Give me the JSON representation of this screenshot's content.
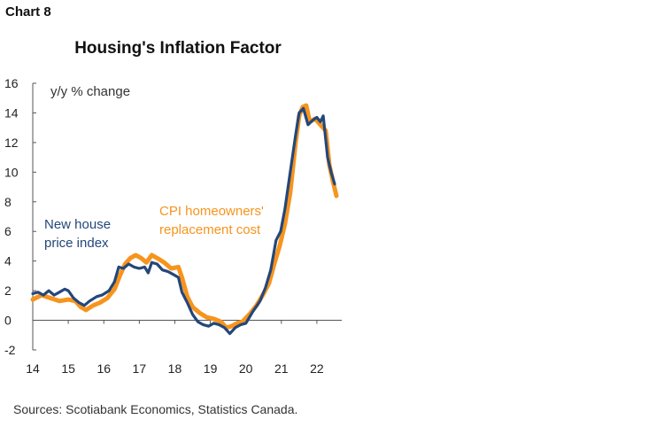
{
  "chart_label": "Chart 8",
  "source": "Sources: Scotiabank Economics, Statistics Canada.",
  "colors": {
    "new_house": "#24477a",
    "cpi": "#f7941d",
    "axis": "#555555",
    "text": "#222222"
  },
  "chart_data": {
    "type": "line",
    "title": "Housing's Inflation Factor",
    "ylabel": "y/y % change",
    "xlabel": "",
    "ylim": [
      -2,
      16
    ],
    "xlim": [
      2014,
      2022.7
    ],
    "yticks": [
      -2,
      0,
      2,
      4,
      6,
      8,
      10,
      12,
      14,
      16
    ],
    "xticks": [
      {
        "value": 2014,
        "label": "14"
      },
      {
        "value": 2015,
        "label": "15"
      },
      {
        "value": 2016,
        "label": "16"
      },
      {
        "value": 2017,
        "label": "17"
      },
      {
        "value": 2018,
        "label": "18"
      },
      {
        "value": 2019,
        "label": "19"
      },
      {
        "value": 2020,
        "label": "20"
      },
      {
        "value": 2021,
        "label": "21"
      },
      {
        "value": 2022,
        "label": "22"
      }
    ],
    "grid": false,
    "series": [
      {
        "name": "CPI  homeowners' replacement cost",
        "color": "#f7941d",
        "label_lines": [
          "CPI  homeowners'",
          "replacement cost"
        ],
        "points": [
          [
            2014.0,
            1.4
          ],
          [
            2014.25,
            1.7
          ],
          [
            2014.5,
            1.5
          ],
          [
            2014.75,
            1.3
          ],
          [
            2015.0,
            1.4
          ],
          [
            2015.2,
            1.3
          ],
          [
            2015.35,
            0.9
          ],
          [
            2015.5,
            0.7
          ],
          [
            2015.7,
            1.0
          ],
          [
            2015.9,
            1.2
          ],
          [
            2016.1,
            1.5
          ],
          [
            2016.3,
            2.1
          ],
          [
            2016.45,
            3.0
          ],
          [
            2016.6,
            3.8
          ],
          [
            2016.75,
            4.2
          ],
          [
            2016.9,
            4.4
          ],
          [
            2017.05,
            4.2
          ],
          [
            2017.2,
            3.9
          ],
          [
            2017.35,
            4.4
          ],
          [
            2017.5,
            4.2
          ],
          [
            2017.7,
            3.9
          ],
          [
            2017.9,
            3.5
          ],
          [
            2018.1,
            3.6
          ],
          [
            2018.2,
            2.9
          ],
          [
            2018.35,
            1.6
          ],
          [
            2018.5,
            0.9
          ],
          [
            2018.7,
            0.5
          ],
          [
            2018.9,
            0.2
          ],
          [
            2019.1,
            0.1
          ],
          [
            2019.3,
            -0.1
          ],
          [
            2019.45,
            -0.5
          ],
          [
            2019.6,
            -0.4
          ],
          [
            2019.75,
            -0.2
          ],
          [
            2019.9,
            -0.1
          ],
          [
            2020.1,
            0.4
          ],
          [
            2020.3,
            1.0
          ],
          [
            2020.5,
            1.8
          ],
          [
            2020.65,
            2.5
          ],
          [
            2020.8,
            3.8
          ],
          [
            2020.95,
            5.0
          ],
          [
            2021.1,
            6.5
          ],
          [
            2021.25,
            8.6
          ],
          [
            2021.4,
            12.0
          ],
          [
            2021.5,
            13.8
          ],
          [
            2021.6,
            14.4
          ],
          [
            2021.7,
            14.5
          ],
          [
            2021.8,
            13.4
          ],
          [
            2021.95,
            13.6
          ],
          [
            2022.1,
            13.2
          ],
          [
            2022.25,
            12.8
          ],
          [
            2022.35,
            10.5
          ],
          [
            2022.45,
            9.4
          ],
          [
            2022.55,
            8.4
          ]
        ]
      },
      {
        "name": "New house price index",
        "color": "#24477a",
        "label_lines": [
          "New house",
          "price index"
        ],
        "points": [
          [
            2014.0,
            1.8
          ],
          [
            2014.15,
            1.9
          ],
          [
            2014.3,
            1.7
          ],
          [
            2014.45,
            2.0
          ],
          [
            2014.6,
            1.7
          ],
          [
            2014.75,
            1.9
          ],
          [
            2014.9,
            2.1
          ],
          [
            2015.0,
            2.0
          ],
          [
            2015.15,
            1.5
          ],
          [
            2015.3,
            1.2
          ],
          [
            2015.45,
            1.0
          ],
          [
            2015.6,
            1.3
          ],
          [
            2015.8,
            1.6
          ],
          [
            2015.95,
            1.7
          ],
          [
            2016.15,
            2.0
          ],
          [
            2016.3,
            2.6
          ],
          [
            2016.42,
            3.6
          ],
          [
            2016.55,
            3.5
          ],
          [
            2016.7,
            3.8
          ],
          [
            2016.85,
            3.6
          ],
          [
            2017.0,
            3.5
          ],
          [
            2017.15,
            3.6
          ],
          [
            2017.25,
            3.2
          ],
          [
            2017.35,
            3.9
          ],
          [
            2017.5,
            3.8
          ],
          [
            2017.65,
            3.4
          ],
          [
            2017.8,
            3.3
          ],
          [
            2017.95,
            3.1
          ],
          [
            2018.1,
            2.9
          ],
          [
            2018.2,
            1.9
          ],
          [
            2018.35,
            1.2
          ],
          [
            2018.5,
            0.4
          ],
          [
            2018.65,
            -0.1
          ],
          [
            2018.8,
            -0.3
          ],
          [
            2018.95,
            -0.4
          ],
          [
            2019.1,
            -0.2
          ],
          [
            2019.25,
            -0.3
          ],
          [
            2019.4,
            -0.5
          ],
          [
            2019.55,
            -0.9
          ],
          [
            2019.7,
            -0.5
          ],
          [
            2019.85,
            -0.3
          ],
          [
            2020.0,
            -0.2
          ],
          [
            2020.2,
            0.6
          ],
          [
            2020.4,
            1.3
          ],
          [
            2020.55,
            2.2
          ],
          [
            2020.7,
            3.4
          ],
          [
            2020.85,
            5.4
          ],
          [
            2020.98,
            6.0
          ],
          [
            2021.1,
            7.5
          ],
          [
            2021.25,
            10.0
          ],
          [
            2021.4,
            12.5
          ],
          [
            2021.5,
            14.0
          ],
          [
            2021.62,
            14.3
          ],
          [
            2021.75,
            13.2
          ],
          [
            2021.88,
            13.5
          ],
          [
            2022.0,
            13.7
          ],
          [
            2022.1,
            13.4
          ],
          [
            2022.18,
            13.8
          ],
          [
            2022.3,
            11.0
          ],
          [
            2022.4,
            10.0
          ],
          [
            2022.5,
            9.2
          ]
        ]
      }
    ]
  }
}
